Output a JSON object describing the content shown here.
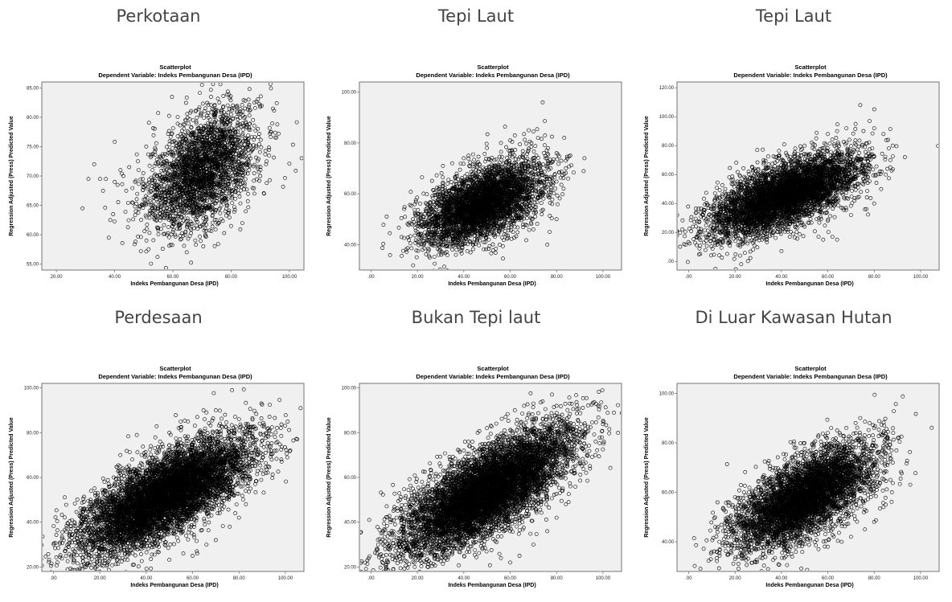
{
  "chart_data": [
    {
      "caption": "Perkotaan",
      "type": "scatter",
      "title": "Scatterplot",
      "subtitle": "Dependent Variable: Indeks Pembangunan Desa (IPD)",
      "xlabel": "Indeks Pembangunan Desa (IPD)",
      "ylabel": "Regression Adjusted (Press) Predicted Value",
      "xlim": [
        15,
        105
      ],
      "ylim": [
        54,
        86
      ],
      "xticks": [
        "20.00",
        "40.00",
        "60.00",
        "80.00",
        "100.00"
      ],
      "xtick_values": [
        20,
        40,
        60,
        80,
        100
      ],
      "yticks": [
        "55.00",
        "60.00",
        "65.00",
        "70.00",
        "75.00",
        "80.00",
        "85.00"
      ],
      "ytick_values": [
        55,
        60,
        65,
        70,
        75,
        80,
        85
      ],
      "points": [
        [
          29,
          64.5
        ],
        [
          31,
          69.5
        ],
        [
          33,
          72
        ],
        [
          35,
          69.5
        ],
        [
          36,
          67.5
        ],
        [
          37,
          69.5
        ],
        [
          38,
          59.5
        ],
        [
          38.5,
          62.5
        ],
        [
          39.5,
          63.5
        ],
        [
          40,
          69
        ],
        [
          41,
          68.5
        ],
        [
          42,
          71
        ],
        [
          43,
          70
        ],
        [
          44,
          67.5
        ],
        [
          45,
          71.5
        ],
        [
          46,
          65.5
        ],
        [
          47,
          69
        ],
        [
          48,
          72.5
        ],
        [
          49,
          57.2
        ],
        [
          50,
          66
        ],
        [
          51,
          61
        ],
        [
          52,
          63.5
        ],
        [
          53,
          71
        ],
        [
          54,
          74.5
        ],
        [
          55,
          64
        ],
        [
          56,
          61
        ],
        [
          58,
          60
        ],
        [
          60,
          60.5
        ],
        [
          62,
          61.5
        ],
        [
          80,
          61.5
        ],
        [
          85,
          64
        ],
        [
          88,
          67
        ],
        [
          90,
          70
        ],
        [
          92,
          72
        ],
        [
          93,
          73.5
        ],
        [
          90,
          82
        ],
        [
          86,
          83
        ],
        [
          88,
          82.5
        ],
        [
          84,
          81
        ],
        [
          82,
          81
        ],
        [
          80,
          80.5
        ],
        [
          76,
          78
        ],
        [
          72,
          79
        ],
        [
          70,
          77.5
        ],
        [
          68,
          76.5
        ],
        [
          66,
          77
        ],
        [
          64,
          75.5
        ],
        [
          62,
          73
        ],
        [
          60,
          74
        ],
        [
          58,
          72.5
        ],
        [
          56,
          72
        ],
        [
          60,
          65
        ],
        [
          62,
          63.5
        ],
        [
          70,
          63.5
        ],
        [
          75,
          62.5
        ],
        [
          78,
          64
        ]
      ],
      "clouds": [
        {
          "cx": 70,
          "cy": 71,
          "sx": 9.5,
          "sy": 3.2,
          "rho": 0.45,
          "n": 2600
        }
      ]
    },
    {
      "caption": "Tepi Laut",
      "type": "scatter",
      "title": "Scatterplot",
      "subtitle": "Dependent Variable: Indeks Pembangunan Desa (IPD)",
      "xlabel": "Indeks Pembangunan Desa (IPD)",
      "ylabel": "Regression Adjusted (Press) Predicted Value",
      "xlim": [
        -5,
        108
      ],
      "ylim": [
        30,
        104
      ],
      "xticks": [
        ".00",
        "20.00",
        "40.00",
        "60.00",
        "80.00",
        "100.00"
      ],
      "xtick_values": [
        0,
        20,
        40,
        60,
        80,
        100
      ],
      "yticks": [
        "40.00",
        "60.00",
        "80.00",
        "100.00"
      ],
      "ytick_values": [
        40,
        60,
        80,
        100
      ],
      "points": [
        [
          17,
          40.5
        ],
        [
          18,
          50
        ],
        [
          19,
          52
        ],
        [
          20,
          45
        ],
        [
          21,
          47
        ],
        [
          22,
          66.5
        ],
        [
          24,
          56
        ],
        [
          25,
          43
        ],
        [
          27,
          44
        ],
        [
          29,
          58
        ],
        [
          31,
          71
        ],
        [
          33,
          64
        ],
        [
          35,
          72
        ],
        [
          37,
          67
        ],
        [
          40,
          74
        ],
        [
          44,
          75.5
        ],
        [
          50,
          78
        ],
        [
          56,
          80
        ],
        [
          60,
          81
        ],
        [
          62,
          83
        ],
        [
          66,
          83.5
        ],
        [
          68,
          85
        ],
        [
          70,
          84.5
        ],
        [
          72,
          82
        ],
        [
          74,
          96
        ],
        [
          75,
          83
        ],
        [
          78,
          82.5
        ],
        [
          80,
          76
        ],
        [
          82,
          73
        ],
        [
          84,
          70
        ],
        [
          85,
          66
        ],
        [
          83,
          62
        ],
        [
          80,
          50
        ],
        [
          77,
          45
        ],
        [
          76,
          40
        ],
        [
          70,
          46
        ],
        [
          62,
          47
        ],
        [
          54,
          46
        ],
        [
          46,
          43.5
        ],
        [
          38,
          44.5
        ],
        [
          30,
          42
        ],
        [
          22,
          49
        ]
      ],
      "clouds": [
        {
          "cx": 48,
          "cy": 56,
          "sx": 13,
          "sy": 5,
          "rho": 0.55,
          "n": 4000
        }
      ]
    },
    {
      "caption": "Tepi Laut",
      "type": "scatter",
      "title": "Scatterplot",
      "subtitle": "Dependent Variable: Indeks Pembangunan Desa (IPD)",
      "xlabel": "Indeks Pembangunan Desa (IPD)",
      "ylabel": "Regression Adjusted (Press) Predicted Value",
      "xlim": [
        -5,
        108
      ],
      "ylim": [
        -6,
        124
      ],
      "xticks": [
        ".00",
        "20.00",
        "40.00",
        "60.00",
        "80.00",
        "100.00"
      ],
      "xtick_values": [
        0,
        20,
        40,
        60,
        80,
        100
      ],
      "yticks": [
        ".00",
        "20.00",
        "40.00",
        "60.00",
        "80.00",
        "100.00",
        "120.00"
      ],
      "ytick_values": [
        0,
        20,
        40,
        60,
        80,
        100,
        120
      ],
      "points": [
        [
          12,
          32
        ],
        [
          13,
          40
        ],
        [
          15,
          28
        ],
        [
          17,
          45
        ],
        [
          20,
          20
        ],
        [
          22,
          52
        ],
        [
          26,
          55
        ],
        [
          30,
          60
        ],
        [
          34,
          65
        ],
        [
          38,
          72
        ],
        [
          42,
          75
        ],
        [
          46,
          78
        ],
        [
          50,
          80
        ],
        [
          55,
          85
        ],
        [
          60,
          88
        ],
        [
          64,
          90
        ],
        [
          68,
          92
        ],
        [
          72,
          95
        ],
        [
          74,
          108
        ],
        [
          78,
          97
        ],
        [
          80,
          92
        ],
        [
          84,
          88
        ],
        [
          86,
          84
        ],
        [
          88,
          80
        ],
        [
          87,
          70
        ],
        [
          85,
          60
        ],
        [
          83,
          50
        ],
        [
          80,
          40
        ],
        [
          76,
          36
        ],
        [
          70,
          32
        ],
        [
          60,
          28
        ],
        [
          58,
          15
        ],
        [
          62,
          17
        ],
        [
          64,
          15
        ],
        [
          56,
          17
        ],
        [
          50,
          24
        ],
        [
          42,
          22
        ],
        [
          36,
          18
        ],
        [
          28,
          22
        ]
      ],
      "clouds": [
        {
          "cx": 42,
          "cy": 46,
          "sx": 16,
          "sy": 9,
          "rho": 0.65,
          "n": 5000
        }
      ]
    },
    {
      "caption": "Perdesaan",
      "type": "scatter",
      "title": "Scatterplot",
      "subtitle": "Dependent Variable: Indeks Pembangunan Desa (IPD)",
      "xlabel": "Indeks Pembangunan Desa (IPD)",
      "ylabel": "Regression Adjusted (Press) Predicted Value",
      "xlim": [
        -5,
        108
      ],
      "ylim": [
        18,
        102
      ],
      "xticks": [
        ".00",
        "20.00",
        "40.00",
        "60.00",
        "80.00",
        "100.00"
      ],
      "xtick_values": [
        0,
        20,
        40,
        60,
        80,
        100
      ],
      "yticks": [
        "20.00",
        "40.00",
        "60.00",
        "80.00",
        "100.00"
      ],
      "ytick_values": [
        20,
        40,
        60,
        80,
        100
      ],
      "points": [
        [
          12,
          42
        ],
        [
          13,
          46
        ],
        [
          14,
          40
        ],
        [
          16,
          48
        ],
        [
          18,
          53
        ],
        [
          22,
          58
        ],
        [
          26,
          60
        ],
        [
          30,
          64
        ],
        [
          34,
          68
        ],
        [
          38,
          70
        ],
        [
          42,
          74
        ],
        [
          46,
          76
        ],
        [
          50,
          80
        ],
        [
          54,
          82
        ],
        [
          58,
          85
        ],
        [
          62,
          87
        ],
        [
          66,
          89
        ],
        [
          70,
          90
        ],
        [
          74,
          88
        ],
        [
          77,
          99
        ],
        [
          80,
          86
        ],
        [
          83,
          82
        ],
        [
          85,
          75
        ],
        [
          86,
          68
        ],
        [
          87,
          65
        ],
        [
          85,
          55
        ],
        [
          83,
          48
        ],
        [
          80,
          42
        ],
        [
          76,
          38
        ],
        [
          70,
          32
        ],
        [
          66,
          30
        ],
        [
          62,
          26
        ],
        [
          60,
          25
        ],
        [
          56,
          26
        ],
        [
          48,
          30
        ],
        [
          40,
          32
        ],
        [
          30,
          30
        ],
        [
          22,
          29
        ],
        [
          18,
          33
        ]
      ],
      "clouds": [
        {
          "cx": 48,
          "cy": 52,
          "sx": 18,
          "sy": 8,
          "rho": 0.72,
          "n": 7000
        }
      ]
    },
    {
      "caption": "Bukan Tepi laut",
      "type": "scatter",
      "title": "Scatterplot",
      "subtitle": "Dependent Variable: Indeks Pembangunan Desa (IPD)",
      "xlabel": "Indeks Pembangunan Desa (IPD)",
      "ylabel": "Regression Adjusted (Press) Predicted Value",
      "xlim": [
        -5,
        108
      ],
      "ylim": [
        18,
        102
      ],
      "xticks": [
        ".00",
        "20.00",
        "40.00",
        "60.00",
        "80.00",
        "100.00"
      ],
      "xtick_values": [
        0,
        20,
        40,
        60,
        80,
        100
      ],
      "yticks": [
        "20.00",
        "40.00",
        "60.00",
        "80.00",
        "100.00"
      ],
      "ytick_values": [
        20,
        40,
        60,
        80,
        100
      ],
      "points": [
        [
          11,
          42
        ],
        [
          13,
          46
        ],
        [
          14,
          38
        ],
        [
          16,
          50
        ],
        [
          18,
          55
        ],
        [
          22,
          58
        ],
        [
          26,
          62
        ],
        [
          30,
          65
        ],
        [
          34,
          68
        ],
        [
          38,
          72
        ],
        [
          42,
          76
        ],
        [
          46,
          80
        ],
        [
          50,
          82
        ],
        [
          54,
          84
        ],
        [
          58,
          87
        ],
        [
          62,
          90
        ],
        [
          66,
          92
        ],
        [
          70,
          93
        ],
        [
          74,
          94
        ],
        [
          78,
          97
        ],
        [
          80,
          92
        ],
        [
          83,
          86
        ],
        [
          85,
          78
        ],
        [
          87,
          70
        ],
        [
          88,
          62
        ],
        [
          86,
          56
        ],
        [
          84,
          48
        ],
        [
          80,
          42
        ],
        [
          76,
          36
        ],
        [
          70,
          30
        ],
        [
          64,
          25
        ],
        [
          60,
          22
        ],
        [
          56,
          24
        ],
        [
          48,
          28
        ],
        [
          40,
          30
        ],
        [
          30,
          30
        ],
        [
          22,
          30
        ],
        [
          16,
          34
        ]
      ],
      "clouds": [
        {
          "cx": 50,
          "cy": 54,
          "sx": 18,
          "sy": 8.5,
          "rho": 0.74,
          "n": 7500
        }
      ]
    },
    {
      "caption": "Di Luar Kawasan Hutan",
      "type": "scatter",
      "title": "Scatterplot",
      "subtitle": "Dependent Variable: Indeks Pembangunan Desa (IPD)",
      "xlabel": "Indeks Pembangunan Desa (IPD)",
      "ylabel": "Regression Adjusted (Press) Predicted Value",
      "xlim": [
        -5,
        108
      ],
      "ylim": [
        28,
        104
      ],
      "xticks": [
        ".00",
        "20.00",
        "40.00",
        "60.00",
        "80.00",
        "100.00"
      ],
      "xtick_values": [
        0,
        20,
        40,
        60,
        80,
        100
      ],
      "yticks": [
        "40.00",
        "60.00",
        "80.00",
        "100.00"
      ],
      "ytick_values": [
        40,
        60,
        80,
        100
      ],
      "points": [
        [
          16,
          42
        ],
        [
          17,
          48
        ],
        [
          18,
          45
        ],
        [
          20,
          58
        ],
        [
          22,
          56
        ],
        [
          26,
          60
        ],
        [
          30,
          62
        ],
        [
          34,
          65
        ],
        [
          38,
          68
        ],
        [
          42,
          70
        ],
        [
          46,
          74
        ],
        [
          50,
          76
        ],
        [
          54,
          80
        ],
        [
          56,
          83
        ],
        [
          60,
          84
        ],
        [
          64,
          85
        ],
        [
          68,
          86
        ],
        [
          72,
          88
        ],
        [
          74,
          90
        ],
        [
          78,
          88
        ],
        [
          80,
          86
        ],
        [
          84,
          84
        ],
        [
          86,
          78
        ],
        [
          88,
          72
        ],
        [
          87,
          65
        ],
        [
          85,
          55
        ],
        [
          84,
          54
        ],
        [
          80,
          48
        ],
        [
          76,
          45
        ],
        [
          70,
          42
        ],
        [
          66,
          40
        ],
        [
          60,
          38
        ],
        [
          56,
          37
        ],
        [
          48,
          40
        ],
        [
          40,
          40
        ],
        [
          32,
          42
        ],
        [
          24,
          44
        ]
      ],
      "clouds": [
        {
          "cx": 50,
          "cy": 58,
          "sx": 15,
          "sy": 6.5,
          "rho": 0.65,
          "n": 5000
        }
      ]
    }
  ]
}
